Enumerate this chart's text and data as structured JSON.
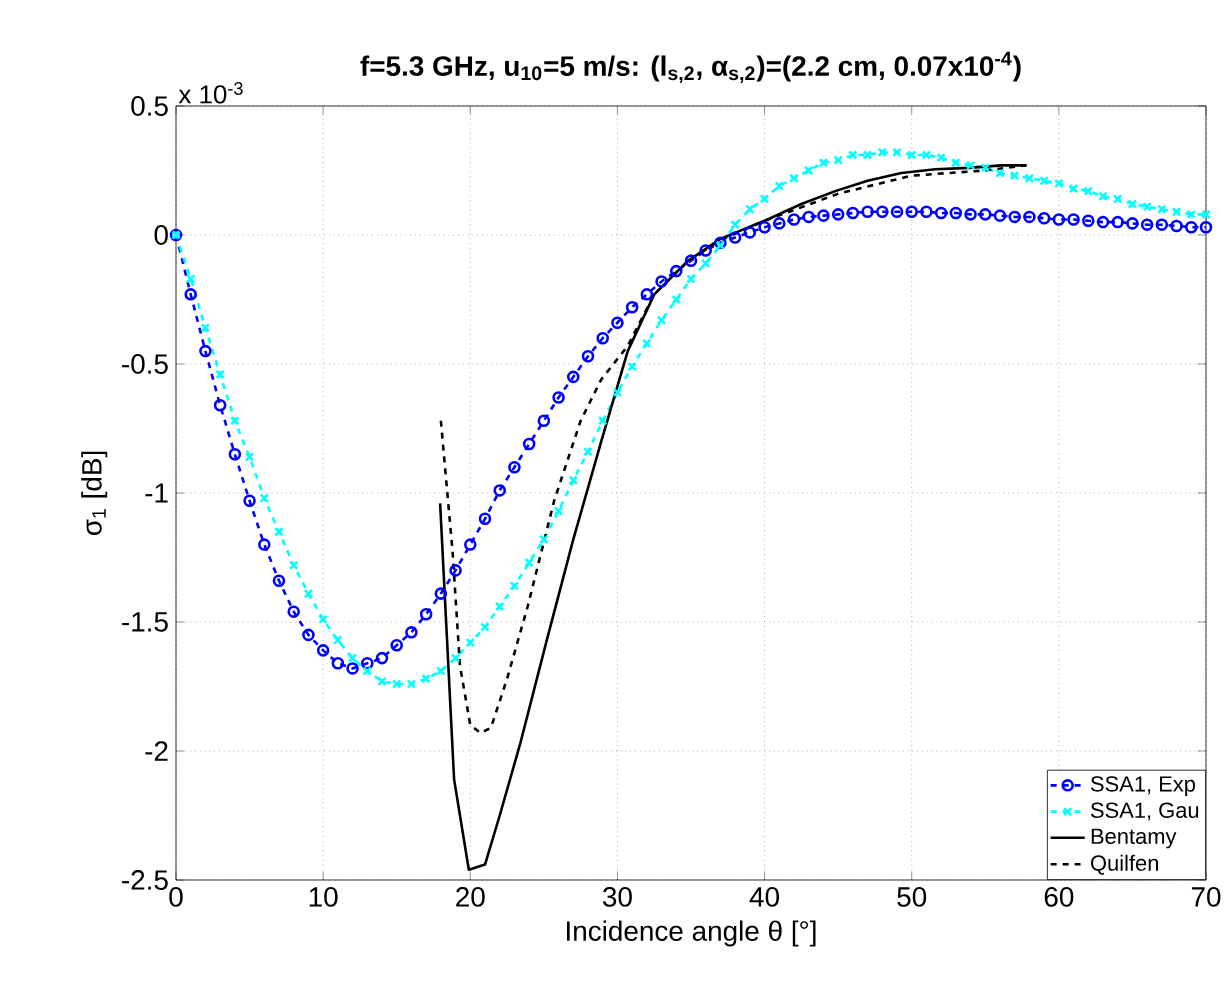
{
  "chart_data": {
    "type": "line",
    "title": "f=5.3 GHz, u$_{10}$=5 m/s: (l$_{s,2}$, α$_{s,2}$)=(2.2 cm, 0.07x10$^{-4}$)",
    "xlabel": "Incidence angle θ [°]",
    "ylabel": "σ$_{1}$ [dB]",
    "annotations": [
      "x 10$^{-3}$"
    ],
    "xlim": [
      0,
      70
    ],
    "ylim": [
      -2.5,
      0.5
    ],
    "xticks": [
      0,
      10,
      20,
      30,
      40,
      50,
      60,
      70
    ],
    "yticks": [
      -2.5,
      -2,
      -1.5,
      -1,
      -0.5,
      0,
      0.5
    ],
    "grid": true,
    "legend": "bottom right",
    "series": [
      {
        "name": "SSA1, Exp",
        "color": "#0000ff",
        "marker": "circle",
        "line_style": "dashed",
        "x": [
          0,
          1,
          2,
          3,
          4,
          5,
          6,
          7,
          8,
          9,
          10,
          11,
          12,
          13,
          14,
          15,
          16,
          17,
          18,
          19,
          20,
          21,
          22,
          23,
          24,
          25,
          26,
          27,
          28,
          29,
          30,
          31,
          32,
          33,
          34,
          35,
          36,
          37,
          38,
          39,
          40,
          41,
          42,
          43,
          44,
          45,
          46,
          47,
          48,
          49,
          50,
          51,
          52,
          53,
          54,
          55,
          56,
          57,
          58,
          59,
          60,
          61,
          62,
          63,
          64,
          65,
          66,
          67,
          68,
          69,
          70
        ],
        "values": [
          0,
          -0.23,
          -0.45,
          -0.66,
          -0.85,
          -1.03,
          -1.2,
          -1.34,
          -1.46,
          -1.55,
          -1.61,
          -1.66,
          -1.68,
          -1.66,
          -1.64,
          -1.59,
          -1.54,
          -1.47,
          -1.39,
          -1.3,
          -1.2,
          -1.1,
          -0.99,
          -0.9,
          -0.81,
          -0.72,
          -0.63,
          -0.55,
          -0.47,
          -0.4,
          -0.34,
          -0.28,
          -0.23,
          -0.18,
          -0.14,
          -0.1,
          -0.06,
          -0.03,
          -0.01,
          0.01,
          0.03,
          0.045,
          0.06,
          0.07,
          0.075,
          0.08,
          0.085,
          0.09,
          0.09,
          0.09,
          0.09,
          0.09,
          0.085,
          0.085,
          0.08,
          0.08,
          0.075,
          0.07,
          0.07,
          0.065,
          0.06,
          0.06,
          0.055,
          0.05,
          0.05,
          0.045,
          0.04,
          0.04,
          0.035,
          0.03,
          0.03
        ]
      },
      {
        "name": "SSA1, Gau",
        "color": "#00ffff",
        "marker": "cross",
        "line_style": "dashed",
        "x": [
          0,
          1,
          2,
          3,
          4,
          5,
          6,
          7,
          8,
          9,
          10,
          11,
          12,
          13,
          14,
          15,
          16,
          17,
          18,
          19,
          20,
          21,
          22,
          23,
          24,
          25,
          26,
          27,
          28,
          29,
          30,
          31,
          32,
          33,
          34,
          35,
          36,
          37,
          38,
          39,
          40,
          41,
          42,
          43,
          44,
          45,
          46,
          47,
          48,
          49,
          50,
          51,
          52,
          53,
          54,
          55,
          56,
          57,
          58,
          59,
          60,
          61,
          62,
          63,
          64,
          65,
          66,
          67,
          68,
          69,
          70
        ],
        "values": [
          0,
          -0.17,
          -0.36,
          -0.54,
          -0.72,
          -0.86,
          -1.02,
          -1.15,
          -1.28,
          -1.39,
          -1.49,
          -1.57,
          -1.64,
          -1.69,
          -1.73,
          -1.74,
          -1.74,
          -1.72,
          -1.69,
          -1.64,
          -1.58,
          -1.52,
          -1.44,
          -1.36,
          -1.27,
          -1.18,
          -1.07,
          -0.95,
          -0.84,
          -0.72,
          -0.61,
          -0.51,
          -0.42,
          -0.33,
          -0.25,
          -0.17,
          -0.11,
          -0.04,
          0.04,
          0.1,
          0.14,
          0.19,
          0.22,
          0.25,
          0.28,
          0.29,
          0.31,
          0.31,
          0.32,
          0.32,
          0.31,
          0.31,
          0.3,
          0.28,
          0.27,
          0.26,
          0.24,
          0.23,
          0.22,
          0.21,
          0.2,
          0.18,
          0.17,
          0.15,
          0.14,
          0.12,
          0.11,
          0.1,
          0.09,
          0.08,
          0.08
        ]
      },
      {
        "name": "Bentamy",
        "color": "#000000",
        "marker": "none",
        "line_style": "solid",
        "x": [
          17.95,
          18.9,
          19.9,
          21,
          22,
          23.4,
          25.2,
          27,
          28.9,
          30.7,
          32.5,
          34.8,
          37,
          40.2,
          42.5,
          44.8,
          47,
          49.3,
          51.6,
          53.9,
          56.1,
          57.8
        ],
        "values": [
          -1.04,
          -2.11,
          -2.46,
          -2.44,
          -2.25,
          -1.97,
          -1.57,
          -1.18,
          -0.8,
          -0.45,
          -0.23,
          -0.1,
          -0.015,
          0.06,
          0.12,
          0.17,
          0.21,
          0.24,
          0.255,
          0.26,
          0.27,
          0.27
        ]
      },
      {
        "name": "Quilfen",
        "color": "#000000",
        "marker": "none",
        "line_style": "dashed",
        "x": [
          18,
          18.8,
          19.3,
          20,
          20.7,
          21.4,
          22.5,
          23.9,
          25.7,
          27.5,
          28.9,
          30.7,
          32.5,
          34.8,
          37,
          40,
          45,
          50,
          55,
          57.8
        ],
        "values": [
          -0.72,
          -1.23,
          -1.67,
          -1.9,
          -1.93,
          -1.91,
          -1.72,
          -1.44,
          -1.03,
          -0.72,
          -0.56,
          -0.43,
          -0.23,
          -0.1,
          -0.02,
          0.055,
          0.16,
          0.23,
          0.25,
          0.27
        ]
      }
    ]
  }
}
